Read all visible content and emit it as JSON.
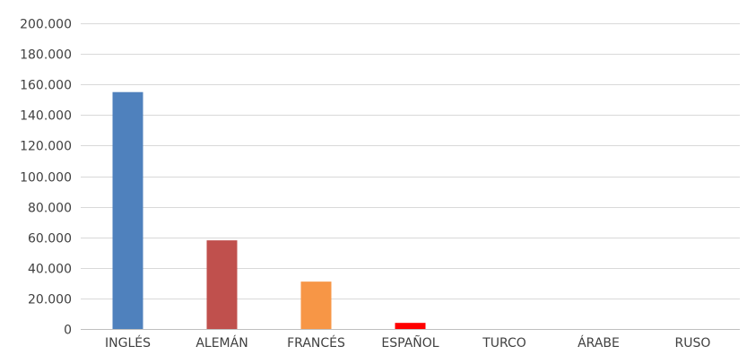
{
  "chart_data": {
    "type": "bar",
    "title": "",
    "xlabel": "",
    "ylabel": "",
    "categories": [
      "INGLÉS",
      "ALEMÁN",
      "FRANCÉS",
      "ESPAÑOL",
      "TURCO",
      "ÁRABE",
      "RUSO"
    ],
    "values": [
      155000,
      58000,
      31000,
      4000,
      0,
      0,
      0
    ],
    "bar_colors": [
      "#4f81bd",
      "#c0504d",
      "#f79646",
      "#ff0000",
      "#4f81bd",
      "#4f81bd",
      "#4f81bd"
    ],
    "ylim": [
      0,
      200000
    ],
    "yticks": [
      0,
      20000,
      40000,
      60000,
      80000,
      100000,
      120000,
      140000,
      160000,
      180000,
      200000
    ],
    "ytick_labels": [
      "0",
      "20.000",
      "40.000",
      "60.000",
      "80.000",
      "100.000",
      "120.000",
      "140.000",
      "160.000",
      "180.000",
      "200.000"
    ],
    "grid": true,
    "legend": "none",
    "gridline_color": "#d9d9d9",
    "axis_color": "#bfbfbf",
    "text_color": "#404040"
  }
}
